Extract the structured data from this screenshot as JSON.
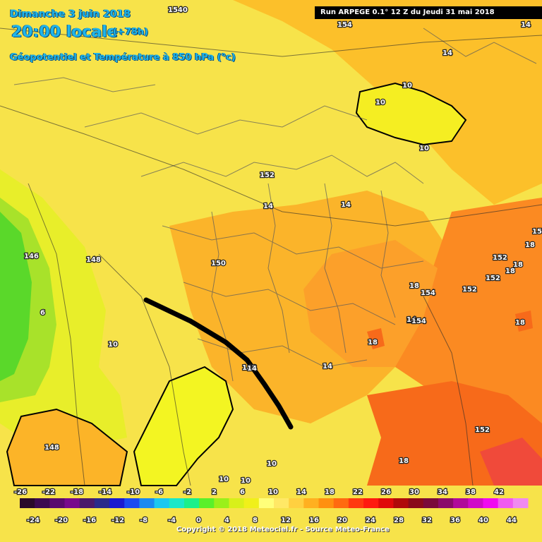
{
  "header": {
    "date": "Dimanche 3 juin 2018",
    "time": "20:00 locale",
    "lead": "(+78h)",
    "variable": "Géopotentiel et Température à 850 hPa (°c)",
    "run_info": "Run ARPEGE 0.1° 12 Z du Jeudi 31 mai 2018"
  },
  "map_labels": [
    "154",
    "14",
    "14",
    "10",
    "10",
    "10",
    "152",
    "14",
    "14",
    "150",
    "148",
    "146",
    "6",
    "10",
    "148",
    "14",
    "14",
    "18",
    "154",
    "14",
    "154",
    "152",
    "18",
    "152",
    "18",
    "152",
    "154",
    "18",
    "18",
    "18",
    "152",
    "18",
    "10",
    "10",
    "10",
    "148",
    "14"
  ],
  "legend": {
    "top_values": [
      "-26",
      "-22",
      "-18",
      "-14",
      "-10",
      "-6",
      "-2",
      "2",
      "6",
      "10",
      "14",
      "18",
      "22",
      "26",
      "30",
      "34",
      "38",
      "42"
    ],
    "bottom_values": [
      "-24",
      "-20",
      "-16",
      "-12",
      "-8",
      "-4",
      "0",
      "4",
      "8",
      "12",
      "16",
      "20",
      "24",
      "28",
      "32",
      "36",
      "40",
      "44"
    ],
    "colors": [
      "#2a0a2a",
      "#3c0a50",
      "#5a0a6e",
      "#780a8c",
      "#4a1a6a",
      "#2a2a8a",
      "#1a1ad0",
      "#1a4af0",
      "#1a8af0",
      "#1ac8f0",
      "#1ae8c8",
      "#1af08a",
      "#5af02a",
      "#9af01a",
      "#d8f01a",
      "#f0f01a",
      "#ffff7a",
      "#ffe866",
      "#ffd040",
      "#ffb020",
      "#ff9010",
      "#ff6a10",
      "#ff3a10",
      "#ff1a10",
      "#e00a0a",
      "#b00a0a",
      "#8a0a1a",
      "#7a0a3a",
      "#8a0a6a",
      "#b00a9a",
      "#d00ac8",
      "#f00af0",
      "#f05af0",
      "#f08af0"
    ]
  },
  "copyright": "Copyright © 2018 Meteociel.fr - Source Meteo-France"
}
